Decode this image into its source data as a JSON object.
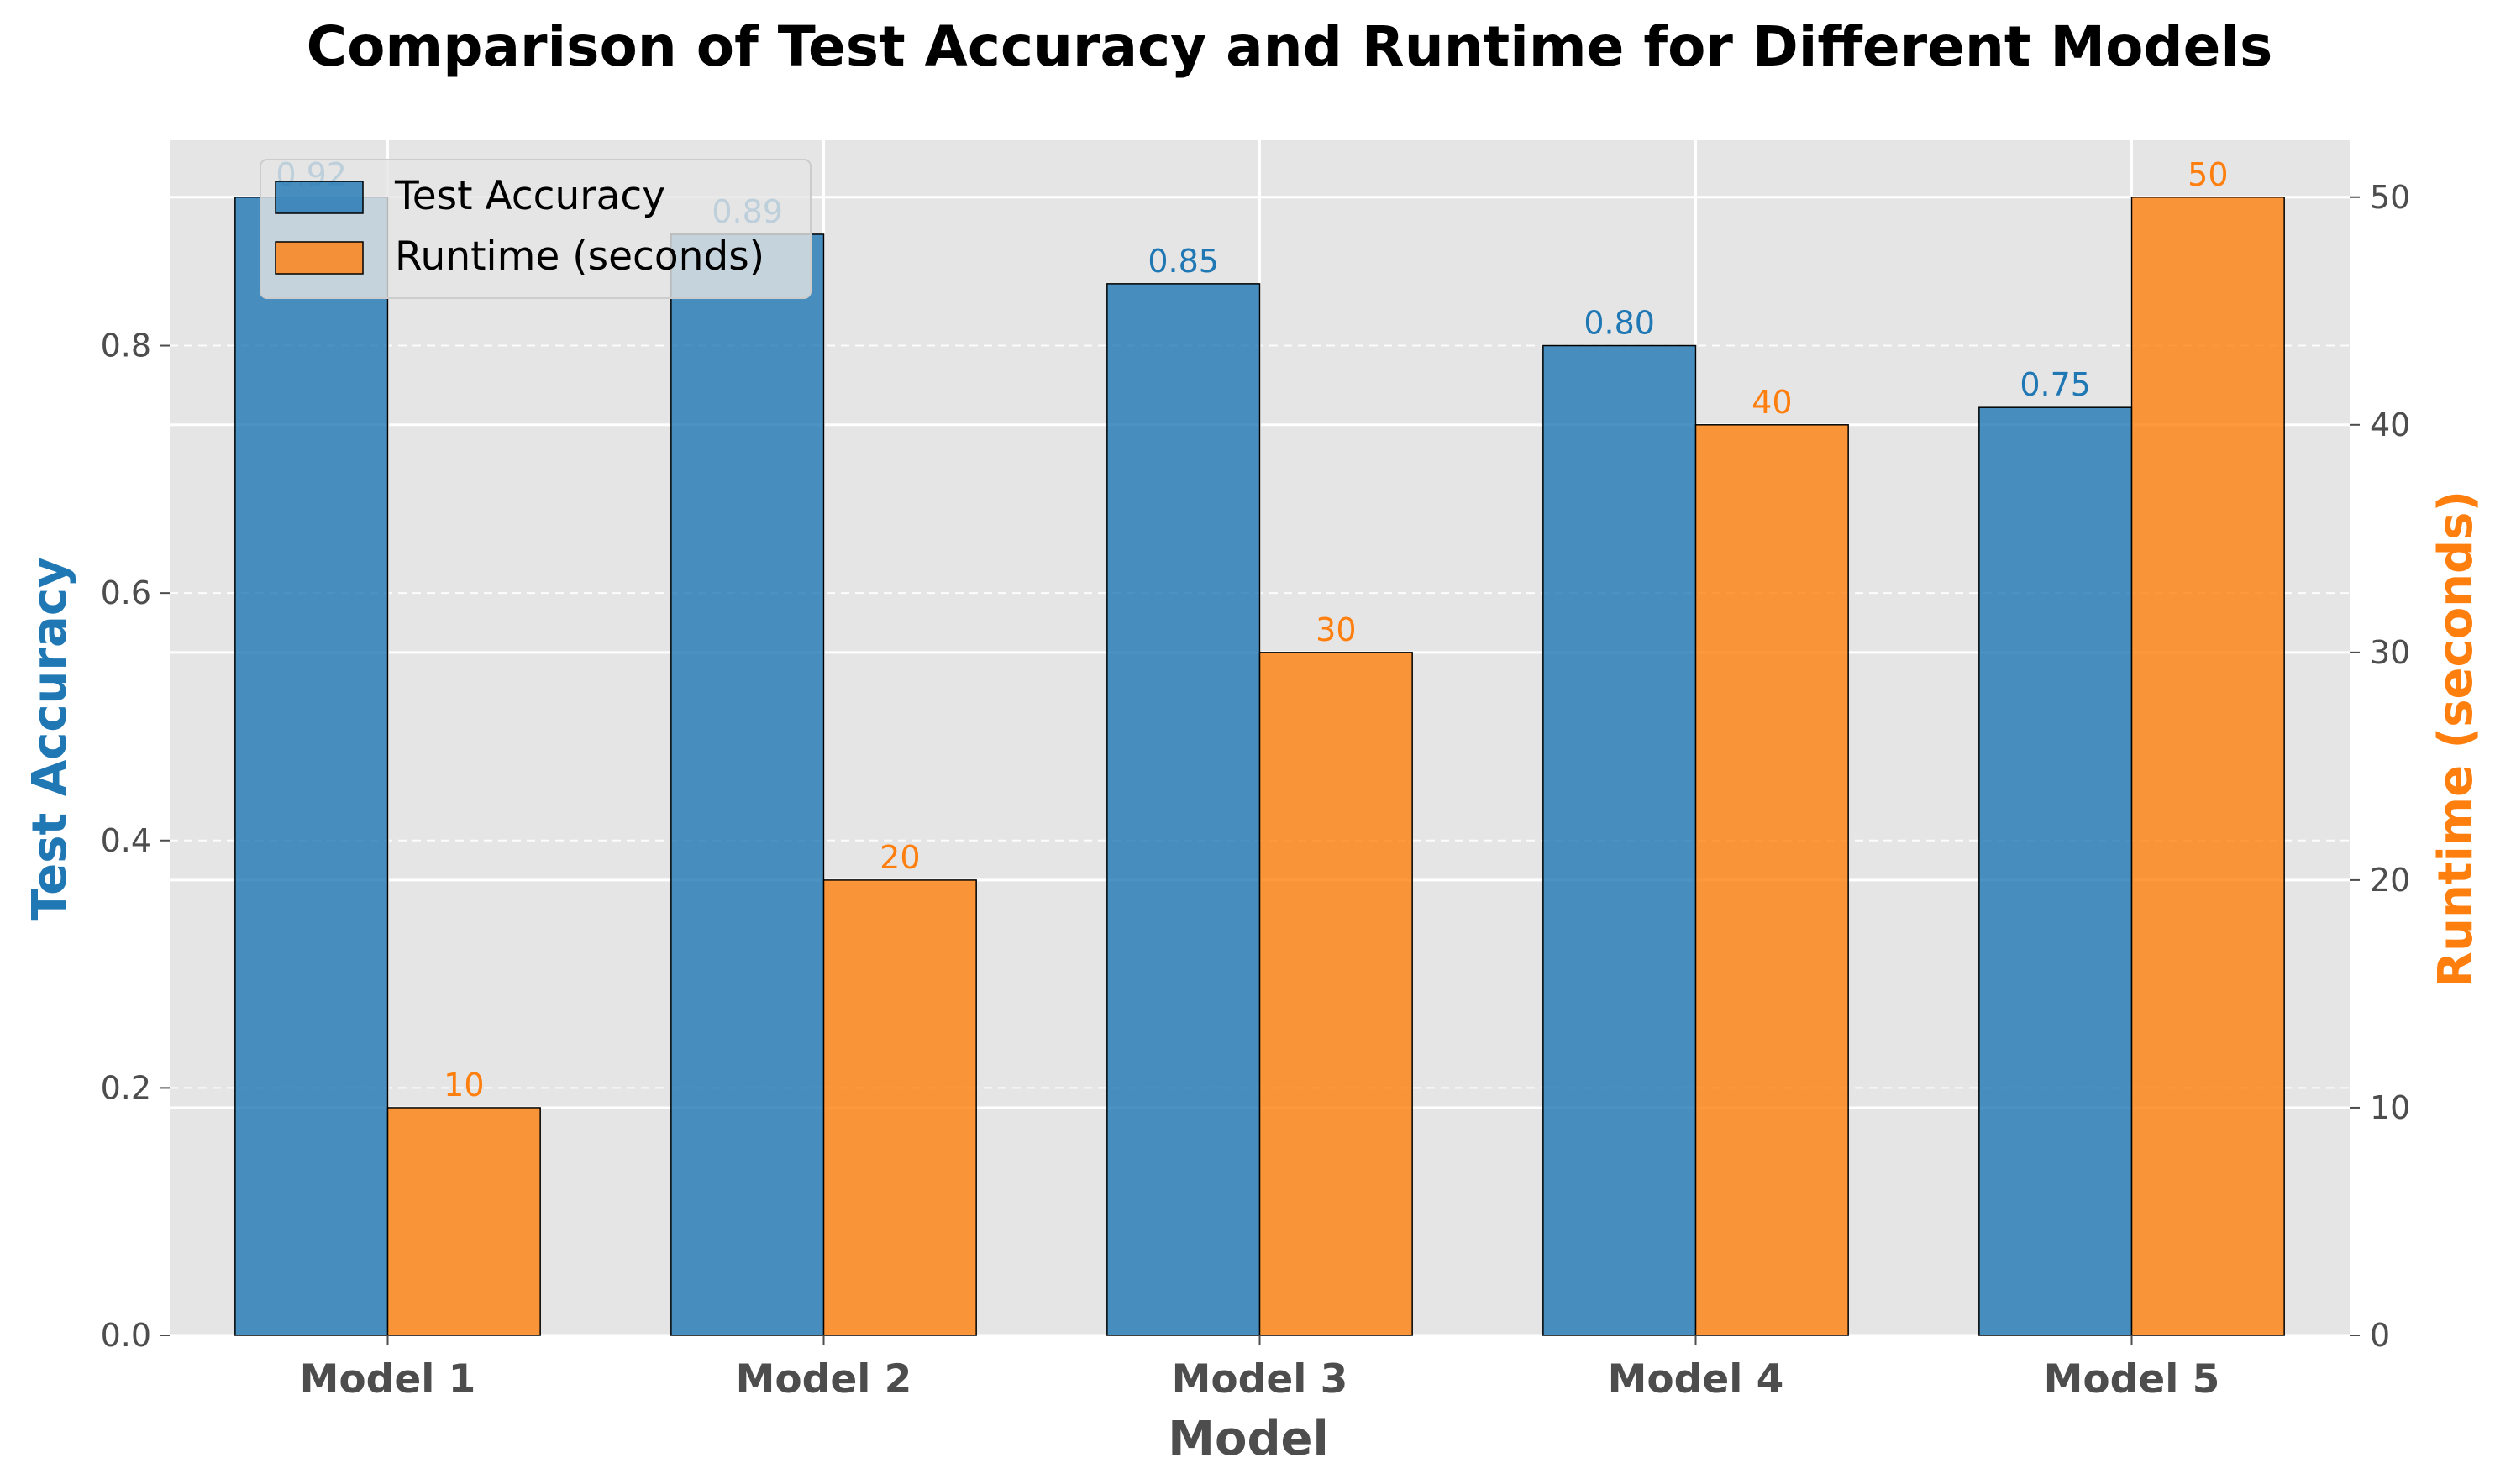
{
  "chart_data": {
    "type": "bar",
    "title": "Comparison of Test Accuracy and Runtime for Different Models",
    "xlabel": "Model",
    "categories": [
      "Model 1",
      "Model 2",
      "Model 3",
      "Model 4",
      "Model 5"
    ],
    "series": [
      {
        "name": "Test Accuracy",
        "axis": "left",
        "color": "#1f77b4",
        "values": [
          0.92,
          0.89,
          0.85,
          0.8,
          0.75
        ],
        "labels": [
          "0.92",
          "0.89",
          "0.85",
          "0.80",
          "0.75"
        ]
      },
      {
        "name": "Runtime (seconds)",
        "axis": "right",
        "color": "#ff7f0e",
        "values": [
          10,
          20,
          30,
          40,
          50
        ],
        "labels": [
          "10",
          "20",
          "30",
          "40",
          "50"
        ]
      }
    ],
    "left_axis": {
      "label": "Test Accuracy",
      "color": "#1f77b4",
      "ylim": [
        0,
        0.966
      ],
      "ticks": [
        0.0,
        0.2,
        0.4,
        0.6,
        0.8
      ],
      "tick_labels": [
        "0.0",
        "0.2",
        "0.4",
        "0.6",
        "0.8"
      ]
    },
    "right_axis": {
      "label": "Runtime (seconds)",
      "color": "#ff7f0e",
      "ylim": [
        0,
        52.5
      ],
      "ticks": [
        0,
        10,
        20,
        30,
        40,
        50
      ],
      "tick_labels": [
        "0",
        "10",
        "20",
        "30",
        "40",
        "50"
      ]
    },
    "grid": true,
    "legend_position": "top-left",
    "background": "#e5e5e5"
  }
}
